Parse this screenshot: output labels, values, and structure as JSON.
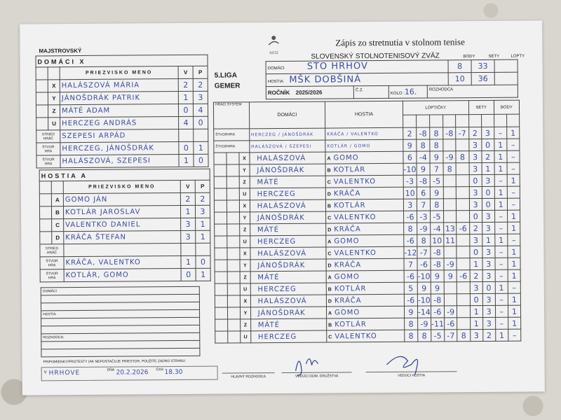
{
  "header": {
    "championship": "MAJSTROVSKÝ",
    "title": "Zápis zo stretnutia v stolnom tenise",
    "federation": "Slovenský stolnotenisový zväz",
    "logo_text": "SSTZ",
    "league": "5.LIGA",
    "region": "GEMER",
    "col_body": "BODY",
    "col_sety": "SETY",
    "col_lopty": "LOPTY",
    "home_label": "DOMÁCI",
    "home_team": "STO HRHOV",
    "home_body": "8",
    "home_sety": "33",
    "away_label": "HOSTIA",
    "away_team": "MŠK DOBŠINÁ",
    "away_body": "10",
    "away_sety": "36",
    "rocnik_label": "ROČNÍK",
    "rocnik": "2025/2026",
    "cz_label": "Č.Z.",
    "kolo_label": "KOLO :",
    "kolo": "16.",
    "rozhodca_label": "ROZHODCA"
  },
  "home_roster": {
    "title": "DOMÁCI   X",
    "col_name": "PRIEZVISKO  MENO",
    "col_v": "V",
    "col_p": "P",
    "players": [
      {
        "code": "X",
        "name": "HALÁSZOVÁ MÁRIA",
        "v": "2",
        "p": "2"
      },
      {
        "code": "Y",
        "name": "JÁNOŠDRÁK PATRIK",
        "v": "1",
        "p": "3"
      },
      {
        "code": "Z",
        "name": "MÁTÉ ADAM",
        "v": "0",
        "p": "4"
      },
      {
        "code": "U",
        "name": "HERCZEG ANDRÁS",
        "v": "4",
        "p": "0"
      },
      {
        "code": "STRIED HRÁČ",
        "name": "SZEPESI ARPÁD",
        "v": "",
        "p": ""
      },
      {
        "code": "ŠTVOR HRA",
        "name": "HERCZEG, JÁNOŠDRÁK",
        "v": "0",
        "p": "1"
      },
      {
        "code": "ŠTVOR HRA",
        "name": "HALÁSZOVÁ, SZEPESI",
        "v": "1",
        "p": "0"
      }
    ]
  },
  "away_roster": {
    "title": "HOSTIA   A",
    "col_name": "PRIEZVISKO  MENO",
    "col_v": "V",
    "col_p": "P",
    "players": [
      {
        "code": "A",
        "name": "GOMO JÁN",
        "v": "2",
        "p": "2"
      },
      {
        "code": "B",
        "name": "KOTLÁR JAROSLAV",
        "v": "1",
        "p": "3"
      },
      {
        "code": "C",
        "name": "VALENTKO DANIEL",
        "v": "3",
        "p": "1"
      },
      {
        "code": "D",
        "name": "KRÁČA ŠTEFAN",
        "v": "3",
        "p": "1"
      },
      {
        "code": "STRIED HRÁČ",
        "name": "",
        "v": "",
        "p": ""
      },
      {
        "code": "ŠTVOR HRA",
        "name": "KRÁČA, VALENTKO",
        "v": "1",
        "p": "0"
      },
      {
        "code": "ŠTVOR HRA",
        "name": "KOTLÁR, GOMO",
        "v": "0",
        "p": "1"
      }
    ]
  },
  "matches": {
    "col_system": "HRACÍ SYSTÉM",
    "col_home": "DOMÁCI",
    "col_away": "HOSTIA",
    "col_balls": "LOPTIČKY",
    "col_sets": "SETY",
    "col_points": "BODY",
    "rows": [
      {
        "sys": "ŠTVORHRA",
        "hc": "",
        "home": "HERCZEG / JÁNOŠDRÁK",
        "ac": "",
        "away": "KRÁČA / VALENTKO",
        "balls": [
          "2",
          "-8",
          "8",
          "-8",
          "-7"
        ],
        "sets": [
          "2",
          "3"
        ],
        "pts": [
          "–",
          "1"
        ]
      },
      {
        "sys": "ŠTVORHRA",
        "hc": "",
        "home": "HALÁSZOVÁ / SZEPESI",
        "ac": "",
        "away": "KOTLÁR / GOMO",
        "balls": [
          "9",
          "8",
          "8",
          "",
          ""
        ],
        "sets": [
          "3",
          "0"
        ],
        "pts": [
          "1",
          "–"
        ]
      },
      {
        "sys": "",
        "hc": "X",
        "home": "HALÁSZOVÁ",
        "ac": "A",
        "away": "GOMO",
        "balls": [
          "6",
          "-4",
          "9",
          "-9",
          "8"
        ],
        "sets": [
          "3",
          "2"
        ],
        "pts": [
          "1",
          "–"
        ]
      },
      {
        "sys": "",
        "hc": "Y",
        "home": "JÁNOŠDRÁK",
        "ac": "B",
        "away": "KOTLÁR",
        "balls": [
          "-10",
          "9",
          "7",
          "8",
          ""
        ],
        "sets": [
          "3",
          "1"
        ],
        "pts": [
          "1",
          "–"
        ]
      },
      {
        "sys": "",
        "hc": "Z",
        "home": "MÁTÉ",
        "ac": "C",
        "away": "VALENTKO",
        "balls": [
          "-3",
          "-8",
          "-5",
          "",
          ""
        ],
        "sets": [
          "0",
          "3"
        ],
        "pts": [
          "–",
          "1"
        ]
      },
      {
        "sys": "",
        "hc": "U",
        "home": "HERCZEG",
        "ac": "D",
        "away": "KRÁČA",
        "balls": [
          "10",
          "6",
          "9",
          "",
          ""
        ],
        "sets": [
          "3",
          "0"
        ],
        "pts": [
          "1",
          "–"
        ]
      },
      {
        "sys": "",
        "hc": "X",
        "home": "HALÁSZOVÁ",
        "ac": "B",
        "away": "KOTLÁR",
        "balls": [
          "3",
          "7",
          "8",
          "",
          ""
        ],
        "sets": [
          "3",
          "0"
        ],
        "pts": [
          "1",
          "–"
        ]
      },
      {
        "sys": "",
        "hc": "Y",
        "home": "JÁNOŠDRÁK",
        "ac": "C",
        "away": "VALENTKO",
        "balls": [
          "-6",
          "-3",
          "-5",
          "",
          ""
        ],
        "sets": [
          "0",
          "3"
        ],
        "pts": [
          "–",
          "1"
        ]
      },
      {
        "sys": "",
        "hc": "Z",
        "home": "MÁTÉ",
        "ac": "D",
        "away": "KRÁČA",
        "balls": [
          "8",
          "-9",
          "-4",
          "13",
          "-6"
        ],
        "sets": [
          "2",
          "3"
        ],
        "pts": [
          "–",
          "1"
        ]
      },
      {
        "sys": "",
        "hc": "U",
        "home": "HERCZEG",
        "ac": "A",
        "away": "GOMO",
        "balls": [
          "-6",
          "8",
          "10",
          "11",
          ""
        ],
        "sets": [
          "3",
          "1"
        ],
        "pts": [
          "1",
          "–"
        ]
      },
      {
        "sys": "",
        "hc": "X",
        "home": "HALÁSZOVÁ",
        "ac": "C",
        "away": "VALENTKO",
        "balls": [
          "-12",
          "-7",
          "-8",
          "",
          ""
        ],
        "sets": [
          "0",
          "3"
        ],
        "pts": [
          "–",
          "1"
        ]
      },
      {
        "sys": "",
        "hc": "Y",
        "home": "JÁNOŠDRÁK",
        "ac": "D",
        "away": "KRÁČA",
        "balls": [
          "7",
          "-6",
          "-8",
          "-9",
          ""
        ],
        "sets": [
          "1",
          "3"
        ],
        "pts": [
          "–",
          "1"
        ]
      },
      {
        "sys": "",
        "hc": "Z",
        "home": "MÁTÉ",
        "ac": "A",
        "away": "GOMO",
        "balls": [
          "-6",
          "-10",
          "9",
          "9",
          "-6"
        ],
        "sets": [
          "2",
          "3"
        ],
        "pts": [
          "–",
          "1"
        ]
      },
      {
        "sys": "",
        "hc": "U",
        "home": "HERCZEG",
        "ac": "B",
        "away": "KOTLÁR",
        "balls": [
          "5",
          "9",
          "9",
          "",
          ""
        ],
        "sets": [
          "3",
          "0"
        ],
        "pts": [
          "1",
          "–"
        ]
      },
      {
        "sys": "",
        "hc": "X",
        "home": "HALÁSZOVÁ",
        "ac": "D",
        "away": "KRÁČA",
        "balls": [
          "-6",
          "-10",
          "-8",
          "",
          ""
        ],
        "sets": [
          "0",
          "3"
        ],
        "pts": [
          "–",
          "1"
        ]
      },
      {
        "sys": "",
        "hc": "Y",
        "home": "JÁNOŠDRÁK",
        "ac": "A",
        "away": "GOMO",
        "balls": [
          "9",
          "-14",
          "-6",
          "-9",
          ""
        ],
        "sets": [
          "1",
          "3"
        ],
        "pts": [
          "–",
          "1"
        ]
      },
      {
        "sys": "",
        "hc": "Z",
        "home": "MÁTÉ",
        "ac": "B",
        "away": "KOTLÁR",
        "balls": [
          "8",
          "-9",
          "-11",
          "-6",
          ""
        ],
        "sets": [
          "1",
          "3"
        ],
        "pts": [
          "–",
          "1"
        ]
      },
      {
        "sys": "",
        "hc": "U",
        "home": "HERCZEG",
        "ac": "C",
        "away": "VALENTKO",
        "balls": [
          "8",
          "8",
          "-5",
          "-7",
          "8"
        ],
        "sets": [
          "3",
          "2"
        ],
        "pts": [
          "1",
          "–"
        ]
      }
    ]
  },
  "notes": {
    "home_label": "DOMÁCI",
    "away_label": "HOSTIA",
    "referee_label": "ROZHODCA:",
    "protests_label": "PRIPOMIENKY/PROTESTY (AK NEPOSTAČUJE PRIESTOR, POUŽITE ZADNÚ STRANU"
  },
  "footer": {
    "place_label": "V",
    "place": "HRHOVE",
    "date_label": "DŇA",
    "date": "20.2.2026",
    "time_label": "ČAS",
    "time": "18.30",
    "chief_referee": "HLAVNÝ ROZHODCA",
    "home_leader": "VEDÚCI DOM. DRUŽSTVA",
    "away_leader": "VEDÚCI HOSTIA"
  }
}
